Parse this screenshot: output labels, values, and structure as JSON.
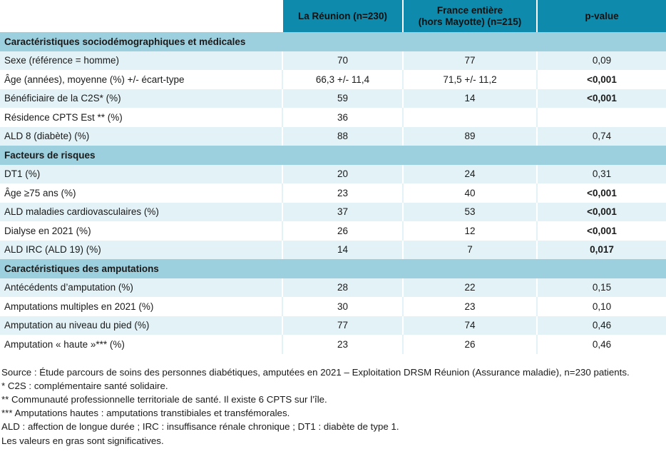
{
  "header": [
    "",
    "La Réunion (n=230)",
    "France entière (hors Mayotte) (n=215)",
    "p-value"
  ],
  "header_lines": {
    "france_line1": "France entière",
    "france_line2": "(hors Mayotte) (n=215)"
  },
  "sections": [
    {
      "title": "Caractéristiques sociodémographiques et médicales",
      "rows": [
        {
          "label": "Sexe (référence = homme)",
          "reunion": "70",
          "france": "77",
          "p": "0,09",
          "significant": false
        },
        {
          "label": "Âge (années), moyenne (%) +/- écart-type",
          "reunion": "66,3 +/- 11,4",
          "france": "71,5 +/- 11,2",
          "p": "<0,001",
          "significant": true
        },
        {
          "label": "Bénéficiaire de la C2S* (%)",
          "reunion": "59",
          "france": "14",
          "p": "<0,001",
          "significant": true
        },
        {
          "label": "Résidence CPTS Est ** (%)",
          "reunion": "36",
          "france": "",
          "p": "",
          "significant": false
        },
        {
          "label": "ALD 8 (diabète) (%)",
          "reunion": "88",
          "france": "89",
          "p": "0,74",
          "significant": false
        }
      ]
    },
    {
      "title": "Facteurs de risques",
      "rows": [
        {
          "label": "DT1 (%)",
          "reunion": "20",
          "france": "24",
          "p": "0,31",
          "significant": false
        },
        {
          "label": "Âge ≥75 ans (%)",
          "reunion": "23",
          "france": "40",
          "p": "<0,001",
          "significant": true
        },
        {
          "label": "ALD maladies cardiovasculaires (%)",
          "reunion": "37",
          "france": "53",
          "p": "<0,001",
          "significant": true
        },
        {
          "label": "Dialyse en 2021 (%)",
          "reunion": "26",
          "france": "12",
          "p": "<0,001",
          "significant": true
        },
        {
          "label": "ALD IRC (ALD 19) (%)",
          "reunion": "14",
          "france": "7",
          "p": "0,017",
          "significant": true
        }
      ]
    },
    {
      "title": "Caractéristiques des amputations",
      "rows": [
        {
          "label": "Antécédents d’amputation (%)",
          "reunion": "28",
          "france": "22",
          "p": "0,15",
          "significant": false
        },
        {
          "label": "Amputations multiples en 2021 (%)",
          "reunion": "30",
          "france": "23",
          "p": "0,10",
          "significant": false
        },
        {
          "label": "Amputation au niveau du pied (%)",
          "reunion": "77",
          "france": "74",
          "p": "0,46",
          "significant": false
        },
        {
          "label": "Amputation « haute »*** (%)",
          "reunion": "23",
          "france": "26",
          "p": "0,46",
          "significant": false
        }
      ]
    }
  ],
  "notes": [
    "Source : Étude parcours de soins des personnes diabétiques, amputées en 2021 – Exploitation DRSM Réunion (Assurance maladie), n=230 patients.",
    "* C2S : complémentaire santé solidaire.",
    "** Communauté professionnelle territoriale de santé. Il existe 6 CPTS sur l’île.",
    "*** Amputations hautes : amputations transtibiales et transfémorales.",
    "ALD : affection de longue durée ; IRC : insuffisance rénale chronique ; DT1 : diabète de type 1.",
    "Les valeurs en gras sont significatives."
  ],
  "colors": {
    "header": "#0d8aac",
    "section": "#9dd0de",
    "row_light": "#e3f2f6"
  }
}
